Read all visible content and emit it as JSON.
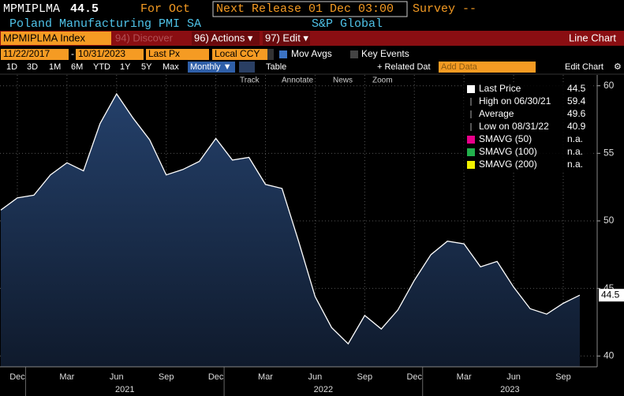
{
  "header": {
    "ticker": "MPMIPLMA",
    "value": 44.5,
    "period": "For Oct",
    "next_release": "Next Release 01 Dec 03:00",
    "survey": "Survey --",
    "name": "Poland Manufacturing PMI SA",
    "source": "S&P Global"
  },
  "toolbar": {
    "security": "MPMIPLMA Index",
    "discover": "94) Discover",
    "actions": "96) Actions ▾",
    "edit": "97) Edit ▾",
    "chart_type": "Line Chart",
    "start_date": "11/22/2017",
    "end_date": "10/31/2023",
    "field": "Last Px",
    "currency": "Local CCY",
    "mov_avgs": "Mov Avgs",
    "key_events": "Key Events",
    "ranges": [
      "1D",
      "3D",
      "1M",
      "6M",
      "YTD",
      "1Y",
      "5Y",
      "Max"
    ],
    "frequency": "Monthly ▼",
    "table": "Table",
    "related": "+ Related Dat",
    "add_data": "Add Data",
    "edit_chart": "Edit Chart",
    "tools": [
      "Track",
      "Annotate",
      "News",
      "Zoom"
    ]
  },
  "chart_data": {
    "type": "area",
    "categories": [
      null,
      "Dec",
      null,
      null,
      "Mar",
      null,
      null,
      "Jun",
      null,
      null,
      "Sep",
      null,
      null,
      "Dec",
      null,
      null,
      "Mar",
      null,
      null,
      "Jun",
      null,
      null,
      "Sep",
      null,
      null,
      "Dec",
      null,
      null,
      "Mar",
      null,
      null,
      "Jun",
      null,
      null,
      "Sep",
      null
    ],
    "year_labels": [
      "2021",
      "2022",
      "2023"
    ],
    "series": [
      {
        "name": "Last Price",
        "color": "#ffffff",
        "values": [
          50.8,
          51.7,
          51.9,
          53.4,
          54.3,
          53.7,
          57.2,
          59.4,
          57.6,
          56.0,
          53.4,
          53.8,
          54.4,
          56.1,
          54.5,
          54.7,
          52.7,
          52.4,
          48.5,
          44.4,
          42.1,
          40.9,
          43.0,
          42.0,
          43.4,
          45.6,
          47.5,
          48.5,
          48.3,
          46.6,
          47.0,
          45.1,
          43.5,
          43.1,
          43.9,
          44.5
        ]
      }
    ],
    "stats": [
      {
        "label": "High on 06/30/21",
        "value": 59.4
      },
      {
        "label": "Average",
        "value": 49.6
      },
      {
        "label": "Low on 08/31/22",
        "value": 40.9
      }
    ],
    "moving_averages": [
      {
        "label": "SMAVG (50)",
        "color": "#e8008a",
        "value": "n.a."
      },
      {
        "label": "SMAVG (100)",
        "color": "#22b14c",
        "value": "n.a."
      },
      {
        "label": "SMAVG (200)",
        "color": "#f0f000",
        "value": "n.a."
      }
    ],
    "ylim": [
      39.2,
      60.8
    ],
    "yticks": [
      40,
      45,
      50,
      55,
      60
    ],
    "grid": true,
    "fill_color": "#1b2d4c"
  }
}
